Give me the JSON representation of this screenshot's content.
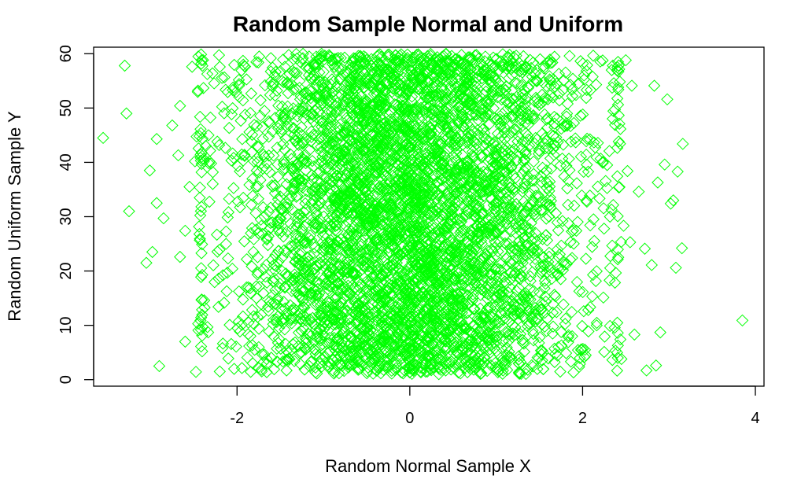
{
  "chart_data": {
    "type": "scatter",
    "title": "Random Sample Normal and Uniform",
    "xlabel": "Random Normal Sample X",
    "ylabel": "Random Uniform Sample Y",
    "xlim": [
      -3.66,
      4.1
    ],
    "ylim": [
      -1.2,
      61.2
    ],
    "x_ticks": [
      -2,
      0,
      2,
      4
    ],
    "y_ticks": [
      0,
      10,
      20,
      30,
      40,
      50,
      60
    ],
    "marker": "open-diamond",
    "grid": false,
    "legend": "none",
    "sample_size": 5000,
    "distribution": {
      "x": {
        "kind": "normal",
        "mean": 0,
        "sd": 1
      },
      "y": {
        "kind": "uniform",
        "min": 1,
        "max": 60
      }
    },
    "outliers": [
      {
        "x": -3.55,
        "y": 44.5
      },
      {
        "x": -3.3,
        "y": 57.8
      },
      {
        "x": -3.28,
        "y": 49.0
      },
      {
        "x": -3.25,
        "y": 31.0
      },
      {
        "x": -3.05,
        "y": 21.5
      },
      {
        "x": -2.98,
        "y": 23.5
      },
      {
        "x": -3.01,
        "y": 38.5
      },
      {
        "x": -2.93,
        "y": 44.3
      },
      {
        "x": -2.93,
        "y": 32.5
      },
      {
        "x": -2.9,
        "y": 2.5
      },
      {
        "x": -2.85,
        "y": 29.7
      },
      {
        "x": -2.75,
        "y": 46.8
      },
      {
        "x": -2.68,
        "y": 41.3
      },
      {
        "x": -2.66,
        "y": 50.4
      },
      {
        "x": -2.66,
        "y": 22.6
      },
      {
        "x": -2.6,
        "y": 27.4
      },
      {
        "x": -2.6,
        "y": 7.0
      },
      {
        "x": -2.52,
        "y": 57.6
      },
      {
        "x": -2.55,
        "y": 35.5
      },
      {
        "x": -2.45,
        "y": 10.3
      },
      {
        "x": -2.38,
        "y": 14.6
      },
      {
        "x": -2.3,
        "y": 39.8
      },
      {
        "x": -2.2,
        "y": 1.5
      },
      {
        "x": 2.25,
        "y": 5.1
      },
      {
        "x": 2.35,
        "y": 57.8
      },
      {
        "x": 2.45,
        "y": 3.8
      },
      {
        "x": 2.5,
        "y": 58.8
      },
      {
        "x": 2.52,
        "y": 38.4
      },
      {
        "x": 2.55,
        "y": 25.3
      },
      {
        "x": 2.57,
        "y": 54.1
      },
      {
        "x": 2.6,
        "y": 8.3
      },
      {
        "x": 2.65,
        "y": 34.6
      },
      {
        "x": 2.72,
        "y": 24.1
      },
      {
        "x": 2.74,
        "y": 1.7
      },
      {
        "x": 2.8,
        "y": 21.1
      },
      {
        "x": 2.83,
        "y": 54.1
      },
      {
        "x": 2.85,
        "y": 2.6
      },
      {
        "x": 2.87,
        "y": 36.3
      },
      {
        "x": 2.9,
        "y": 8.7
      },
      {
        "x": 2.95,
        "y": 39.6
      },
      {
        "x": 2.98,
        "y": 51.6
      },
      {
        "x": 3.02,
        "y": 32.4
      },
      {
        "x": 3.05,
        "y": 33.0
      },
      {
        "x": 3.08,
        "y": 20.6
      },
      {
        "x": 3.1,
        "y": 38.3
      },
      {
        "x": 3.15,
        "y": 24.2
      },
      {
        "x": 3.16,
        "y": 43.4
      },
      {
        "x": 3.85,
        "y": 10.9
      }
    ],
    "colors": {
      "points": "#00ff00",
      "axes": "#000000",
      "background": "#ffffff"
    }
  }
}
